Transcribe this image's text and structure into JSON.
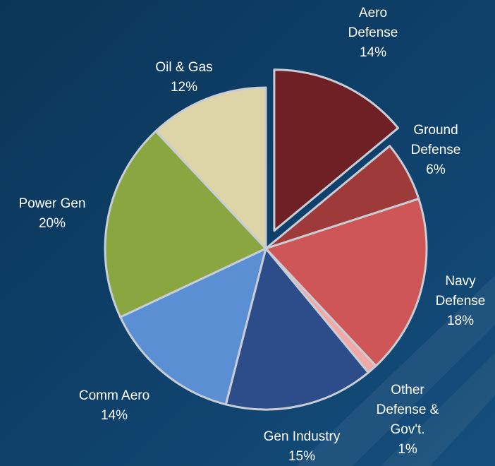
{
  "chart_data": {
    "type": "pie",
    "title": "",
    "start_angle_deg": 0,
    "direction": "clockwise",
    "exploded_slice": "Aero Defense",
    "slices": [
      {
        "name": "Aero Defense",
        "value": 14,
        "label_lines": [
          "Aero",
          "Defense",
          "14%"
        ],
        "color": "#6e2024"
      },
      {
        "name": "Ground Defense",
        "value": 6,
        "label_lines": [
          "Ground",
          "Defense",
          "6%"
        ],
        "color": "#9e3a3a"
      },
      {
        "name": "Navy Defense",
        "value": 18,
        "label_lines": [
          "Navy",
          "Defense",
          "18%"
        ],
        "color": "#ce5656"
      },
      {
        "name": "Other Defense & Gov't.",
        "value": 1,
        "label_lines": [
          "Other",
          "Defense &",
          "Gov't.",
          "1%"
        ],
        "color": "#f0a9a6"
      },
      {
        "name": "Gen Industry",
        "value": 15,
        "label_lines": [
          "Gen Industry",
          "15%"
        ],
        "color": "#2c4d8a"
      },
      {
        "name": "Comm Aero",
        "value": 14,
        "label_lines": [
          "Comm Aero",
          "14%"
        ],
        "color": "#5a8fd4"
      },
      {
        "name": "Power Gen",
        "value": 20,
        "label_lines": [
          "Power Gen",
          "20%"
        ],
        "color": "#8aa640"
      },
      {
        "name": "Oil & Gas",
        "value": 12,
        "label_lines": [
          "Oil & Gas",
          "12%"
        ],
        "color": "#ddd5a8"
      }
    ]
  }
}
